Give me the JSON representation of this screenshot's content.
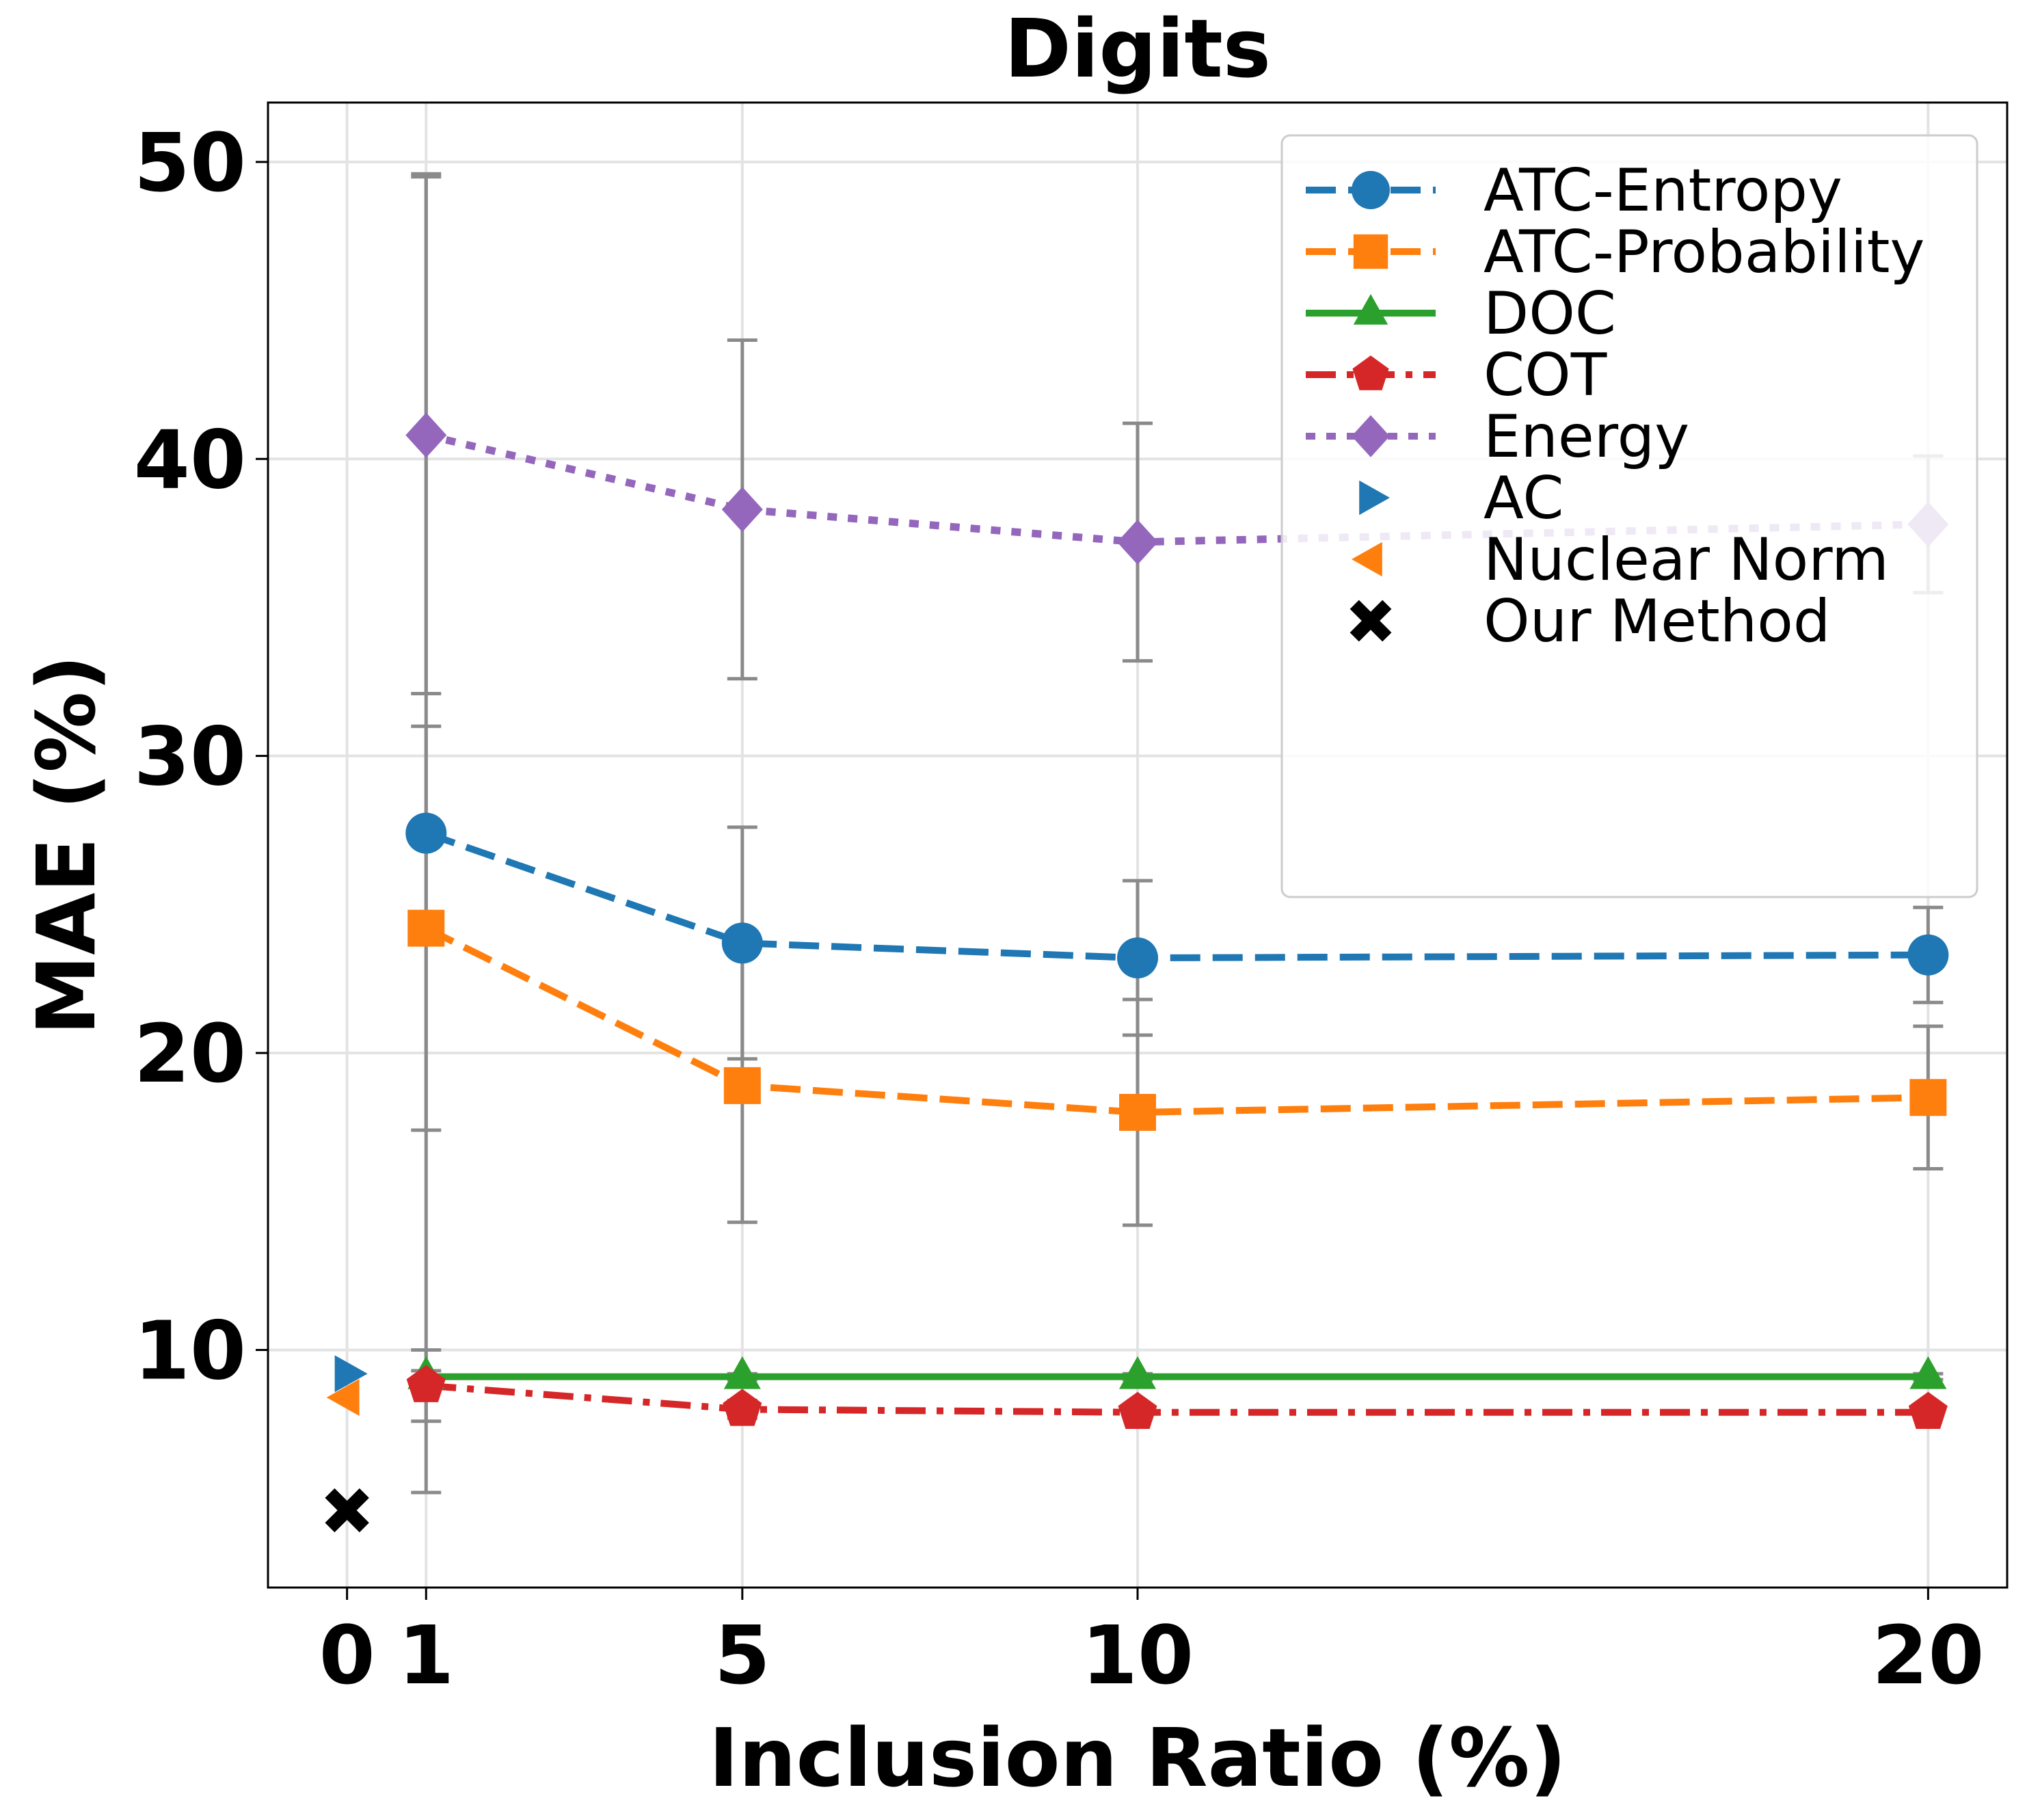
{
  "chart_data": {
    "type": "line",
    "title": "Digits",
    "xlabel": "Inclusion Ratio (%)",
    "ylabel": "MAE (%)",
    "xlim": [
      -1,
      21
    ],
    "ylim": [
      2,
      52
    ],
    "xticks": [
      0,
      1,
      5,
      10,
      20
    ],
    "yticks": [
      10,
      20,
      30,
      40,
      50
    ],
    "grid": true,
    "legend_position": "top-right",
    "series": [
      {
        "name": "ATC-Entropy",
        "color": "#1f77b4",
        "marker": "circle",
        "dash": "dashed",
        "x": [
          1,
          5,
          10,
          20
        ],
        "y": [
          27.4,
          23.7,
          23.2,
          23.3
        ],
        "err": [
          22.2,
          3.9,
          2.6,
          1.6
        ]
      },
      {
        "name": "ATC-Probability",
        "color": "#ff7f0e",
        "marker": "square",
        "dash": "dashed",
        "x": [
          1,
          5,
          10,
          20
        ],
        "y": [
          24.2,
          18.9,
          18.0,
          18.5
        ],
        "err": [
          6.8,
          4.6,
          3.8,
          2.4
        ]
      },
      {
        "name": "DOC",
        "color": "#2ca02c",
        "marker": "triangle-up",
        "dash": "solid",
        "x": [
          1,
          5,
          10,
          20
        ],
        "y": [
          9.1,
          9.1,
          9.1,
          9.1
        ],
        "err": [
          0.2,
          0.1,
          0.1,
          0.1
        ]
      },
      {
        "name": "COT",
        "color": "#d62728",
        "marker": "pentagon",
        "dash": "dashdot",
        "x": [
          1,
          5,
          10,
          20
        ],
        "y": [
          8.8,
          8.0,
          7.9,
          7.9
        ],
        "err": [
          1.2,
          0.3,
          0.2,
          0.1
        ]
      },
      {
        "name": "Energy",
        "color": "#9467bd",
        "marker": "diamond",
        "dash": "dotted",
        "x": [
          1,
          5,
          10,
          20
        ],
        "y": [
          40.8,
          38.3,
          37.2,
          37.8
        ],
        "err": [
          8.7,
          5.7,
          4.0,
          2.3
        ]
      },
      {
        "name": "AC",
        "color": "#1f77b4",
        "marker": "triangle-right",
        "dash": "none",
        "x": [
          0
        ],
        "y": [
          9.2
        ]
      },
      {
        "name": "Nuclear Norm",
        "color": "#ff7f0e",
        "marker": "triangle-left",
        "dash": "none",
        "x": [
          0
        ],
        "y": [
          8.4
        ]
      },
      {
        "name": "Our Method",
        "color": "#000000",
        "marker": "x",
        "dash": "none",
        "x": [
          0
        ],
        "y": [
          4.6
        ]
      }
    ]
  }
}
